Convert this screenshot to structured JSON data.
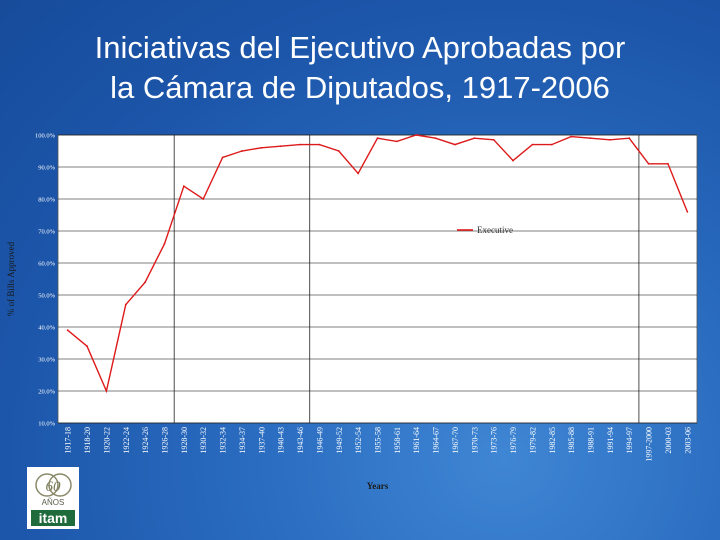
{
  "slide": {
    "title_line1": "Iniciativas del Ejecutivo Aprobadas por",
    "title_line2": "la Cámara de Diputados, 1917-2006"
  },
  "logo": {
    "number": "60",
    "word": "AÑOS",
    "brand": "itam"
  },
  "colors": {
    "background": "#2a6cc0",
    "plot_background": "#ffffff",
    "series_line": "#dd1a1a",
    "grid": "#000000"
  },
  "chart_data": {
    "type": "line",
    "title": "",
    "xlabel": "Years",
    "ylabel": "% of Bills Approved",
    "ylim": [
      10,
      100
    ],
    "y_ticks": [
      "10.0%",
      "20.0%",
      "30.0%",
      "40.0%",
      "50.0%",
      "60.0%",
      "70.0%",
      "80.0%",
      "90.0%",
      "100.0%"
    ],
    "grid": "horizontal",
    "legend_position": "right-middle",
    "vertical_markers": [
      "1928-30",
      "1946-49",
      "1997-2000"
    ],
    "categories": [
      "1917-18",
      "1918-20",
      "1920-22",
      "1922-24",
      "1924-26",
      "1926-28",
      "1928-30",
      "1930-32",
      "1932-34",
      "1934-37",
      "1937-40",
      "1940-43",
      "1943-46",
      "1946-49",
      "1949-52",
      "1952-54",
      "1955-58",
      "1958-61",
      "1961-64",
      "1964-67",
      "1967-70",
      "1970-73",
      "1973-76",
      "1976-79",
      "1979-82",
      "1982-85",
      "1985-88",
      "1988-91",
      "1991-94",
      "1994-97",
      "1997-2000",
      "2000-03",
      "2003-06"
    ],
    "series": [
      {
        "name": "Executive",
        "values": [
          39,
          34,
          20,
          47,
          54,
          66,
          84,
          80,
          93,
          95,
          96,
          96.5,
          97,
          97,
          95,
          88,
          99,
          98,
          100,
          99,
          97,
          99,
          98.5,
          92,
          97,
          97,
          99.5,
          99,
          98.5,
          99,
          91,
          91,
          76
        ]
      }
    ]
  }
}
